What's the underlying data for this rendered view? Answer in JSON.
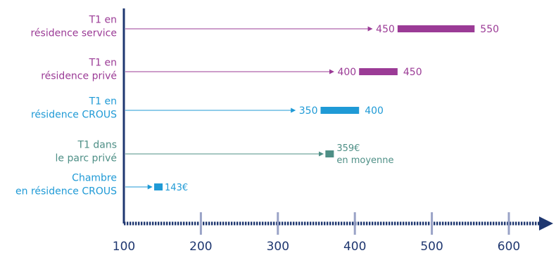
{
  "chart_data": {
    "type": "range",
    "title": "",
    "xlabel": "",
    "ylabel": "",
    "xlim": [
      100,
      650
    ],
    "xticks": [
      100,
      200,
      300,
      400,
      500,
      600
    ],
    "grid": false,
    "legend": "none",
    "unit": "€",
    "categories": [
      {
        "label": "T1 en\nrésidence service",
        "min": 450,
        "max": 550,
        "min_label": "450",
        "max_label": "550",
        "color": "#9b3b96"
      },
      {
        "label": "T1 en\nrésidence privé",
        "min": 400,
        "max": 450,
        "min_label": "400",
        "max_label": "450",
        "color": "#9b3b96"
      },
      {
        "label": "T1 en\nrésidence CROUS",
        "min": 350,
        "max": 400,
        "min_label": "350",
        "max_label": "400",
        "color": "#1f9ad6"
      },
      {
        "label": "T1 dans\nle parc privé",
        "min": 359,
        "max": 359,
        "value_label": "359€",
        "note": "en moyenne",
        "color": "#4e8f86"
      },
      {
        "label": "Chambre\nen résidence CROUS",
        "min": 143,
        "max": 143,
        "value_label": "143€",
        "color": "#1f9ad6"
      }
    ],
    "colors": {
      "axis": "#1f3770",
      "tick": "#9aa3c7"
    }
  }
}
